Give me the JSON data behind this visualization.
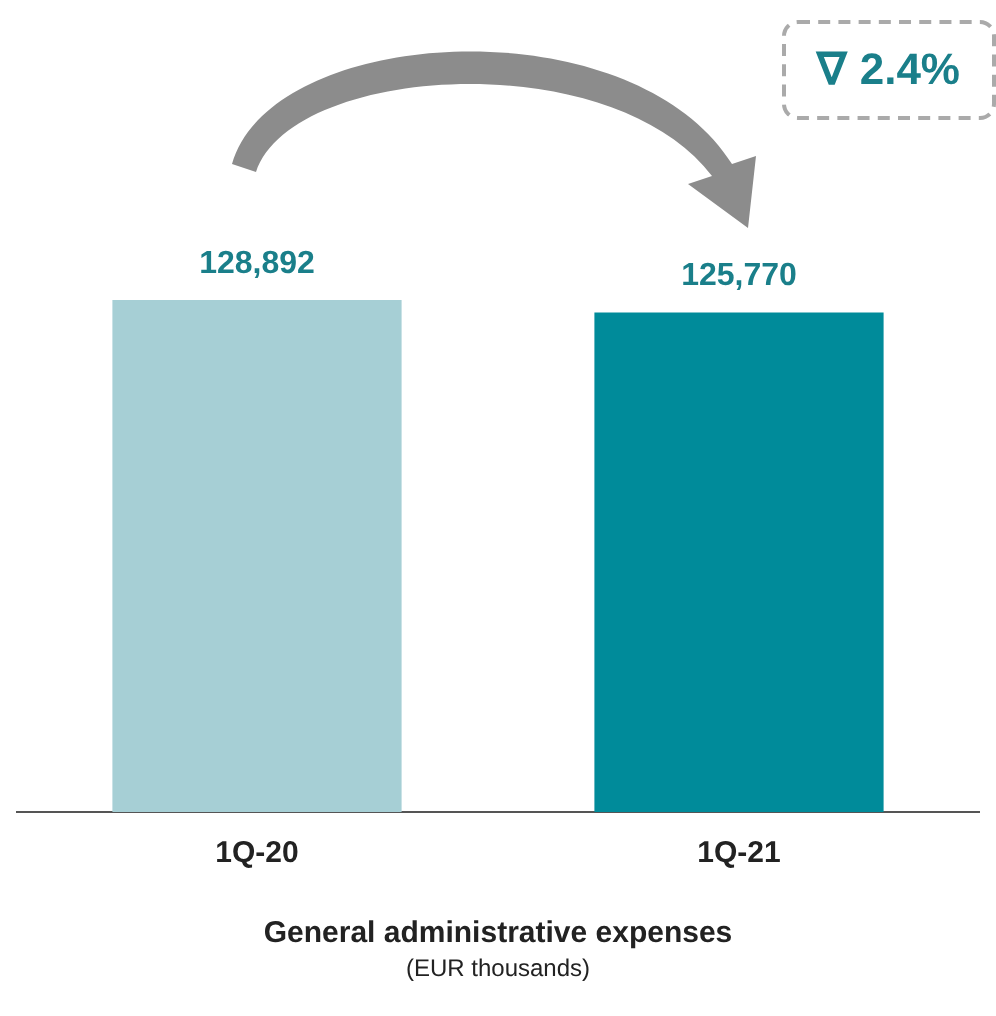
{
  "chart_data": {
    "type": "bar",
    "categories": [
      "1Q-20",
      "1Q-21"
    ],
    "values": [
      128892,
      125770
    ],
    "colors": [
      "#a6cfd5",
      "#008b9a"
    ],
    "value_labels": [
      "128,892",
      "125,770"
    ],
    "xlabel": "General administrative expenses",
    "annotations": [
      "∇ 2.4%",
      "(EUR thousands)"
    ],
    "grid": false,
    "legend": false
  }
}
